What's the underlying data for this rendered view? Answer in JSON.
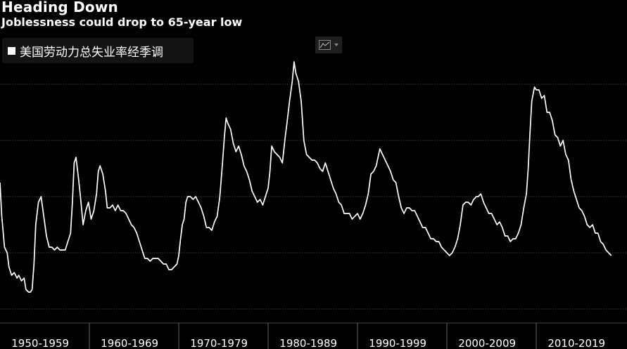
{
  "header": {
    "title": "Heading Down",
    "subtitle": "Joblessness could drop to 65-year low"
  },
  "legend": {
    "label": "美国劳动力总失业率经季调"
  },
  "toolbar": {
    "chart_type_icon": "line-chart-icon"
  },
  "colors": {
    "background": "#000000",
    "line": "#ffffff",
    "grid": "#555555"
  },
  "chart_data": {
    "type": "line",
    "title": "Heading Down",
    "subtitle": "Joblessness could drop to 65-year low",
    "xlabel": "",
    "ylabel": "",
    "x_tick_labels": [
      "1950-1959",
      "1960-1969",
      "1970-1979",
      "1980-1989",
      "1990-1999",
      "2000-2009",
      "2010-2019"
    ],
    "xlim": [
      1950,
      2018.5
    ],
    "ylim": [
      1.5,
      12
    ],
    "y_gridlines": [
      2,
      4,
      6,
      8,
      10
    ],
    "grid": "horizontal dotted",
    "legend_position": "top-left",
    "series": [
      {
        "name": "美国劳动力总失业率经季调",
        "x": [
          1950.0,
          1950.2,
          1950.5,
          1950.8,
          1951.0,
          1951.3,
          1951.6,
          1951.9,
          1952.1,
          1952.4,
          1952.7,
          1952.9,
          1953.2,
          1953.4,
          1953.6,
          1953.8,
          1954.0,
          1954.3,
          1954.6,
          1954.9,
          1955.2,
          1955.5,
          1955.8,
          1956.1,
          1956.4,
          1956.7,
          1957.0,
          1957.3,
          1957.6,
          1957.9,
          1958.1,
          1958.3,
          1958.5,
          1958.8,
          1959.0,
          1959.3,
          1959.6,
          1959.9,
          1960.2,
          1960.5,
          1960.8,
          1961.0,
          1961.2,
          1961.5,
          1961.8,
          1962.0,
          1962.3,
          1962.6,
          1962.9,
          1963.2,
          1963.5,
          1963.8,
          1964.1,
          1964.4,
          1964.7,
          1965.0,
          1965.3,
          1965.6,
          1965.9,
          1966.2,
          1966.5,
          1966.8,
          1967.1,
          1967.4,
          1967.7,
          1968.0,
          1968.3,
          1968.6,
          1968.9,
          1969.2,
          1969.5,
          1969.8,
          1970.0,
          1970.2,
          1970.4,
          1970.6,
          1970.8,
          1971.0,
          1971.3,
          1971.6,
          1971.9,
          1972.2,
          1972.5,
          1972.8,
          1973.1,
          1973.4,
          1973.7,
          1974.0,
          1974.3,
          1974.6,
          1974.9,
          1975.1,
          1975.3,
          1975.5,
          1975.8,
          1976.1,
          1976.4,
          1976.7,
          1977.0,
          1977.3,
          1977.6,
          1977.9,
          1978.2,
          1978.5,
          1978.8,
          1979.1,
          1979.4,
          1979.7,
          1980.0,
          1980.2,
          1980.4,
          1980.7,
          1981.0,
          1981.3,
          1981.6,
          1981.9,
          1982.1,
          1982.4,
          1982.7,
          1982.9,
          1983.1,
          1983.4,
          1983.7,
          1984.0,
          1984.3,
          1984.6,
          1984.9,
          1985.2,
          1985.5,
          1985.8,
          1986.1,
          1986.4,
          1986.7,
          1987.0,
          1987.3,
          1987.6,
          1987.9,
          1988.2,
          1988.5,
          1988.8,
          1989.1,
          1989.4,
          1989.7,
          1990.0,
          1990.3,
          1990.6,
          1990.9,
          1991.2,
          1991.5,
          1991.8,
          1992.1,
          1992.3,
          1992.5,
          1992.8,
          1993.1,
          1993.4,
          1993.7,
          1994.0,
          1994.3,
          1994.6,
          1994.9,
          1995.2,
          1995.5,
          1995.8,
          1996.1,
          1996.4,
          1996.7,
          1997.0,
          1997.3,
          1997.6,
          1997.9,
          1998.2,
          1998.5,
          1998.8,
          1999.1,
          1999.4,
          1999.7,
          2000.0,
          2000.3,
          2000.6,
          2000.9,
          2001.2,
          2001.5,
          2001.8,
          2002.1,
          2002.4,
          2002.7,
          2003.0,
          2003.3,
          2003.5,
          2003.8,
          2004.1,
          2004.4,
          2004.7,
          2005.0,
          2005.3,
          2005.6,
          2005.9,
          2006.2,
          2006.5,
          2006.8,
          2007.1,
          2007.4,
          2007.7,
          2008.0,
          2008.3,
          2008.6,
          2008.9,
          2009.1,
          2009.3,
          2009.5,
          2009.8,
          2010.0,
          2010.3,
          2010.6,
          2010.9,
          2011.2,
          2011.5,
          2011.8,
          2012.1,
          2012.4,
          2012.7,
          2013.0,
          2013.3,
          2013.6,
          2013.9,
          2014.2,
          2014.5,
          2014.8,
          2015.1,
          2015.4,
          2015.7,
          2016.0,
          2016.3,
          2016.6,
          2016.9,
          2017.2,
          2017.5,
          2017.8,
          2018.1,
          2018.4
        ],
        "values": [
          6.5,
          5.3,
          4.2,
          4.0,
          3.5,
          3.2,
          3.3,
          3.1,
          3.2,
          3.0,
          3.1,
          2.7,
          2.6,
          2.6,
          2.7,
          3.6,
          5.0,
          5.8,
          6.0,
          5.3,
          4.6,
          4.2,
          4.2,
          4.1,
          4.2,
          4.1,
          4.1,
          4.1,
          4.4,
          4.7,
          5.8,
          7.2,
          7.4,
          6.6,
          6.0,
          5.0,
          5.5,
          5.8,
          5.2,
          5.5,
          6.1,
          6.9,
          7.1,
          6.8,
          6.2,
          5.6,
          5.6,
          5.7,
          5.5,
          5.7,
          5.5,
          5.5,
          5.4,
          5.2,
          5.0,
          4.9,
          4.7,
          4.4,
          4.1,
          3.8,
          3.8,
          3.7,
          3.8,
          3.8,
          3.8,
          3.7,
          3.6,
          3.6,
          3.4,
          3.4,
          3.5,
          3.6,
          3.9,
          4.5,
          5.0,
          5.2,
          5.8,
          6.0,
          6.0,
          5.9,
          6.0,
          5.8,
          5.6,
          5.3,
          4.9,
          4.9,
          4.8,
          5.1,
          5.3,
          6.0,
          7.2,
          8.1,
          8.8,
          8.6,
          8.4,
          7.9,
          7.6,
          7.8,
          7.5,
          7.1,
          6.9,
          6.6,
          6.2,
          6.0,
          5.8,
          5.9,
          5.7,
          6.0,
          6.3,
          6.9,
          7.8,
          7.6,
          7.5,
          7.4,
          7.2,
          8.1,
          8.6,
          9.4,
          10.1,
          10.8,
          10.4,
          10.1,
          9.4,
          8.0,
          7.5,
          7.4,
          7.3,
          7.3,
          7.2,
          7.0,
          6.9,
          7.2,
          6.9,
          6.6,
          6.3,
          6.1,
          5.8,
          5.7,
          5.4,
          5.4,
          5.4,
          5.2,
          5.3,
          5.4,
          5.2,
          5.4,
          5.7,
          6.1,
          6.8,
          6.9,
          7.1,
          7.4,
          7.7,
          7.5,
          7.3,
          7.1,
          6.9,
          6.6,
          6.5,
          6.0,
          5.6,
          5.4,
          5.6,
          5.6,
          5.5,
          5.5,
          5.3,
          5.1,
          4.9,
          4.9,
          4.7,
          4.5,
          4.5,
          4.4,
          4.4,
          4.2,
          4.1,
          4.0,
          3.9,
          4.0,
          4.2,
          4.5,
          5.0,
          5.7,
          5.8,
          5.8,
          5.7,
          5.9,
          6.0,
          6.0,
          6.1,
          5.8,
          5.6,
          5.4,
          5.4,
          5.2,
          5.0,
          5.1,
          4.9,
          4.6,
          4.6,
          4.4,
          4.5,
          4.5,
          4.7,
          5.0,
          5.6,
          6.1,
          7.0,
          8.3,
          9.4,
          9.9,
          9.8,
          9.8,
          9.5,
          9.6,
          9.0,
          9.0,
          8.7,
          8.2,
          8.1,
          7.8,
          8.0,
          7.5,
          7.3,
          6.6,
          6.2,
          5.9,
          5.6,
          5.5,
          5.3,
          5.0,
          4.9,
          5.0,
          4.7,
          4.7,
          4.4,
          4.3,
          4.1,
          4.0,
          3.9
        ]
      }
    ]
  }
}
